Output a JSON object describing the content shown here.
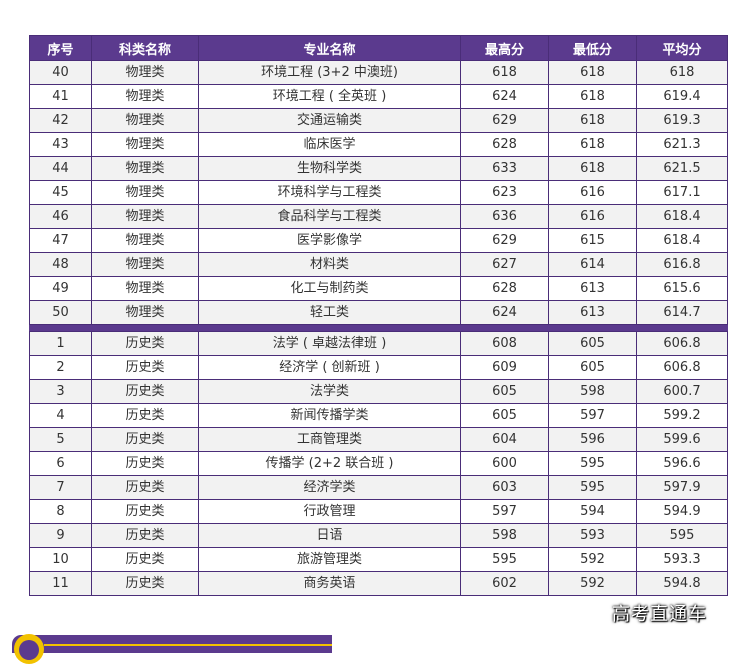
{
  "table": {
    "headers": [
      "序号",
      "科类名称",
      "专业名称",
      "最高分",
      "最低分",
      "平均分"
    ],
    "group1": [
      [
        "40",
        "物理类",
        "环境工程 (3+2 中澳班)",
        "618",
        "618",
        "618"
      ],
      [
        "41",
        "物理类",
        "环境工程 ( 全英班 )",
        "624",
        "618",
        "619.4"
      ],
      [
        "42",
        "物理类",
        "交通运输类",
        "629",
        "618",
        "619.3"
      ],
      [
        "43",
        "物理类",
        "临床医学",
        "628",
        "618",
        "621.3"
      ],
      [
        "44",
        "物理类",
        "生物科学类",
        "633",
        "618",
        "621.5"
      ],
      [
        "45",
        "物理类",
        "环境科学与工程类",
        "623",
        "616",
        "617.1"
      ],
      [
        "46",
        "物理类",
        "食品科学与工程类",
        "636",
        "616",
        "618.4"
      ],
      [
        "47",
        "物理类",
        "医学影像学",
        "629",
        "615",
        "618.4"
      ],
      [
        "48",
        "物理类",
        "材料类",
        "627",
        "614",
        "616.8"
      ],
      [
        "49",
        "物理类",
        "化工与制药类",
        "628",
        "613",
        "615.6"
      ],
      [
        "50",
        "物理类",
        "轻工类",
        "624",
        "613",
        "614.7"
      ]
    ],
    "group2": [
      [
        "1",
        "历史类",
        "法学 ( 卓越法律班 )",
        "608",
        "605",
        "606.8"
      ],
      [
        "2",
        "历史类",
        "经济学 ( 创新班 )",
        "609",
        "605",
        "606.8"
      ],
      [
        "3",
        "历史类",
        "法学类",
        "605",
        "598",
        "600.7"
      ],
      [
        "4",
        "历史类",
        "新闻传播学类",
        "605",
        "597",
        "599.2"
      ],
      [
        "5",
        "历史类",
        "工商管理类",
        "604",
        "596",
        "599.6"
      ],
      [
        "6",
        "历史类",
        "传播学 (2+2 联合班 )",
        "600",
        "595",
        "596.6"
      ],
      [
        "7",
        "历史类",
        "经济学类",
        "603",
        "595",
        "597.9"
      ],
      [
        "8",
        "历史类",
        "行政管理",
        "597",
        "594",
        "594.9"
      ],
      [
        "9",
        "历史类",
        "日语",
        "598",
        "593",
        "595"
      ],
      [
        "10",
        "历史类",
        "旅游管理类",
        "595",
        "592",
        "593.3"
      ],
      [
        "11",
        "历史类",
        "商务英语",
        "602",
        "592",
        "594.8"
      ]
    ]
  },
  "watermark": "高考直通车",
  "colors": {
    "header_bg": "#5b3a8e",
    "stripe_bg": "#f2f2f2",
    "accent": "#f2c200"
  }
}
